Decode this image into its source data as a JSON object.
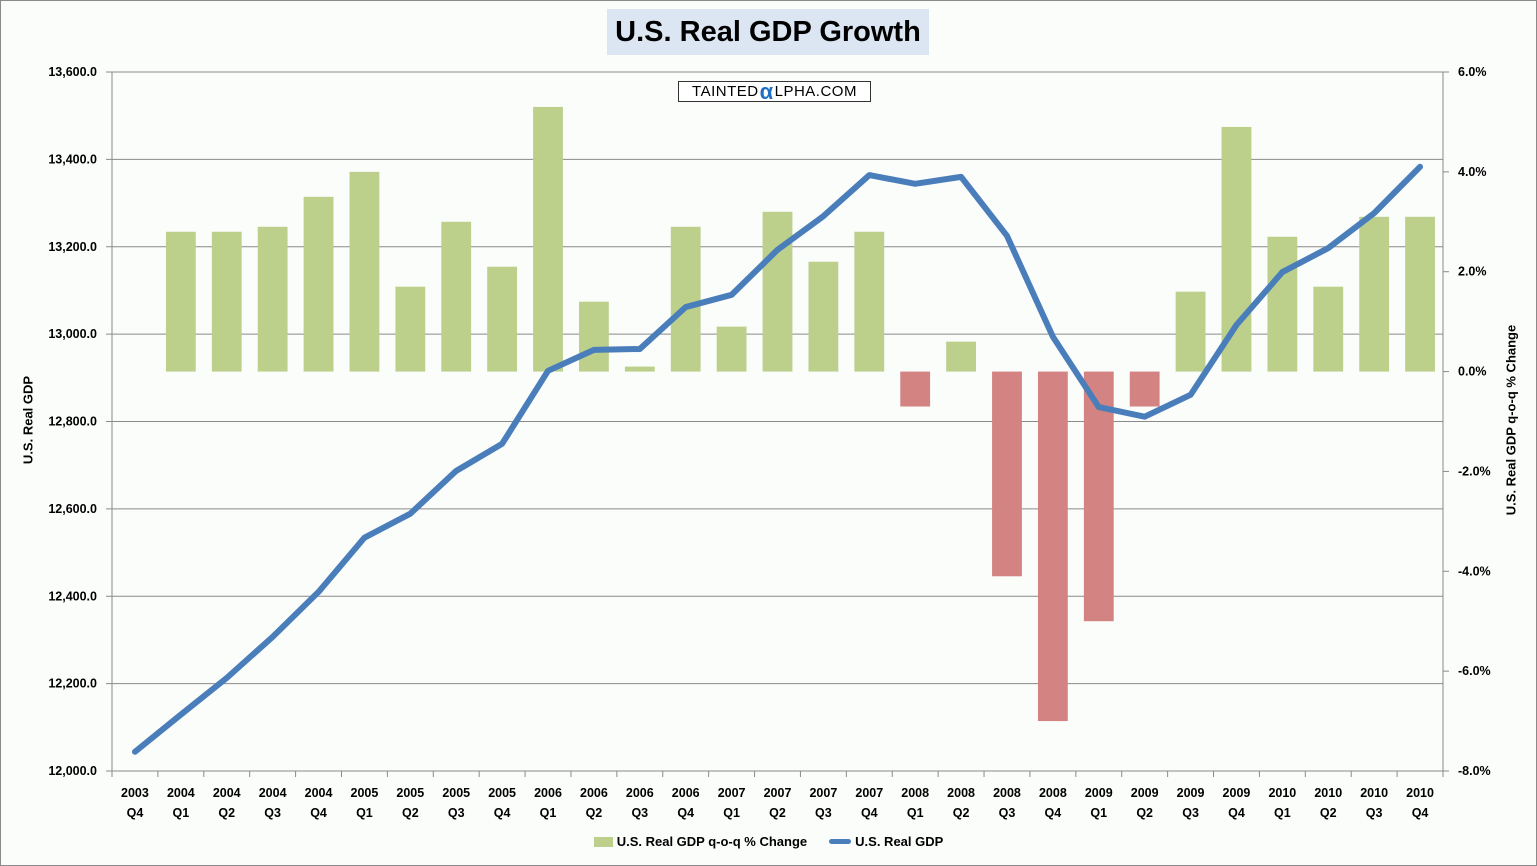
{
  "title": "U.S. Real GDP Growth",
  "watermark": {
    "prefix": "TAINTED",
    "alpha": "α",
    "suffix": "LPHA.COM"
  },
  "colors": {
    "bar_positive": "#bcd08c",
    "bar_negative": "#d48383",
    "line": "#4a7ebb",
    "title_bg": "#dce6f2",
    "grid": "#8a8a8a"
  },
  "chart_data": {
    "type": "bar+line",
    "title": "U.S. Real GDP Growth",
    "categories": [
      [
        "2003",
        "Q4"
      ],
      [
        "2004",
        "Q1"
      ],
      [
        "2004",
        "Q2"
      ],
      [
        "2004",
        "Q3"
      ],
      [
        "2004",
        "Q4"
      ],
      [
        "2005",
        "Q1"
      ],
      [
        "2005",
        "Q2"
      ],
      [
        "2005",
        "Q3"
      ],
      [
        "2005",
        "Q4"
      ],
      [
        "2006",
        "Q1"
      ],
      [
        "2006",
        "Q2"
      ],
      [
        "2006",
        "Q3"
      ],
      [
        "2006",
        "Q4"
      ],
      [
        "2007",
        "Q1"
      ],
      [
        "2007",
        "Q2"
      ],
      [
        "2007",
        "Q3"
      ],
      [
        "2007",
        "Q4"
      ],
      [
        "2008",
        "Q1"
      ],
      [
        "2008",
        "Q2"
      ],
      [
        "2008",
        "Q3"
      ],
      [
        "2008",
        "Q4"
      ],
      [
        "2009",
        "Q1"
      ],
      [
        "2009",
        "Q2"
      ],
      [
        "2009",
        "Q3"
      ],
      [
        "2009",
        "Q4"
      ],
      [
        "2010",
        "Q1"
      ],
      [
        "2010",
        "Q2"
      ],
      [
        "2010",
        "Q3"
      ],
      [
        "2010",
        "Q4"
      ]
    ],
    "series": [
      {
        "name": "U.S. Real GDP q-o-q % Change",
        "type": "bar",
        "axis": "right",
        "values": [
          null,
          2.8,
          2.8,
          2.9,
          3.5,
          4.0,
          1.7,
          3.0,
          2.1,
          5.3,
          1.4,
          0.1,
          2.9,
          0.9,
          3.2,
          2.2,
          2.8,
          -0.7,
          0.6,
          -4.1,
          -7.0,
          -5.0,
          -0.7,
          1.6,
          4.9,
          2.7,
          1.7,
          3.1,
          3.1
        ]
      },
      {
        "name": "U.S. Real GDP",
        "type": "line",
        "axis": "left",
        "values": [
          12044,
          12129,
          12213,
          12307,
          12410,
          12534,
          12589,
          12687,
          12749,
          12916,
          12964,
          12966,
          13062,
          13090,
          13193,
          13270,
          13364,
          13344,
          13360,
          13225,
          12994,
          12833,
          12811,
          12861,
          13021,
          13142,
          13197,
          13277,
          13383
        ]
      }
    ],
    "ylabel_left": "U.S. Real GDP",
    "ylabel_right": "U.S. Real GDP q-o-q % Change",
    "ylim_left": [
      12000,
      13600
    ],
    "yticks_left": [
      "13,600.0",
      "13,400.0",
      "13,200.0",
      "13,000.0",
      "12,800.0",
      "12,600.0",
      "12,400.0",
      "12,200.0",
      "12,000.0"
    ],
    "ylim_right": [
      -8,
      6
    ],
    "yticks_right": [
      "6.0%",
      "4.0%",
      "2.0%",
      "0.0%",
      "-2.0%",
      "-4.0%",
      "-6.0%",
      "-8.0%"
    ],
    "grid": true,
    "legend": "bottom"
  },
  "legend": {
    "bar_label": "U.S. Real GDP q-o-q % Change",
    "line_label": "U.S. Real GDP"
  }
}
